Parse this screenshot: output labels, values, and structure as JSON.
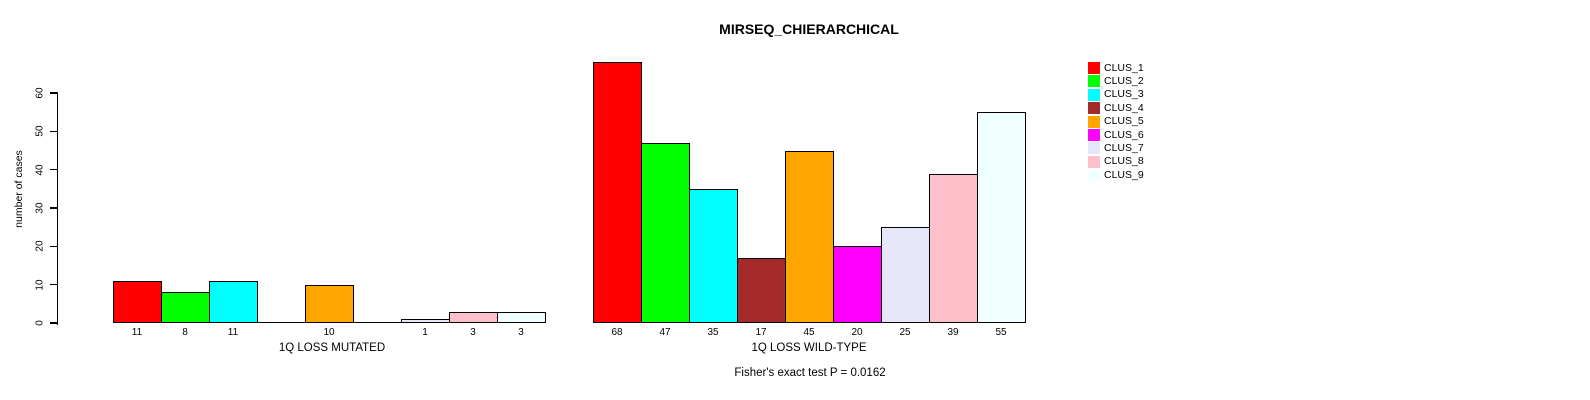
{
  "title": "MIRSEQ_CHIERARCHICAL",
  "chart_data": {
    "type": "bar",
    "title": "MIRSEQ_CHIERARCHICAL",
    "ylabel": "number of cases",
    "xlabel": "",
    "ylim": [
      0,
      60
    ],
    "yticks": [
      0,
      10,
      20,
      30,
      40,
      50,
      60
    ],
    "grid": false,
    "legend_position": "right",
    "clusters": [
      "CLUS_1",
      "CLUS_2",
      "CLUS_3",
      "CLUS_4",
      "CLUS_5",
      "CLUS_6",
      "CLUS_7",
      "CLUS_8",
      "CLUS_9"
    ],
    "colors": [
      "#FF0000",
      "#00FF00",
      "#00FFFF",
      "#A52A2A",
      "#FFA500",
      "#FF00FF",
      "#E6E6FA",
      "#FFC0CB",
      "#F0FFFF"
    ],
    "groups": [
      {
        "label": "1Q LOSS MUTATED",
        "values": [
          11,
          8,
          11,
          0,
          10,
          0,
          1,
          3,
          3
        ]
      },
      {
        "label": "1Q LOSS WILD-TYPE",
        "values": [
          68,
          47,
          35,
          17,
          45,
          20,
          25,
          39,
          55
        ]
      }
    ],
    "bar_value_labels_shown_for_zero": false,
    "footnote": "Fisher's exact test P = 0.0162"
  }
}
